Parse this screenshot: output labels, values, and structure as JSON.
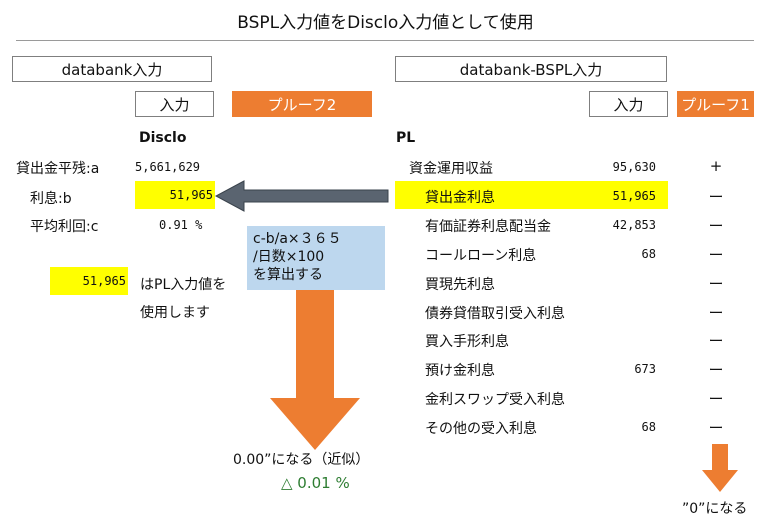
{
  "title": "BSPL入力値をDisclo入力値として使用",
  "left": {
    "header": "databank入力",
    "input_label": "入力",
    "proof_label": "プルーフ2",
    "section": "Disclo",
    "rows": [
      {
        "label": "貸出金平残:a",
        "value": "5,661,629"
      },
      {
        "label": "利息:b",
        "value": "51,965"
      },
      {
        "label": "平均利回:c",
        "value": "0.91 %"
      }
    ],
    "standalone_value": "51,965",
    "note_line1": "はPL入力値を",
    "note_line2": "使用します"
  },
  "right": {
    "header": "databank-BSPL入力",
    "input_label": "入力",
    "proof_label": "プルーフ1",
    "section": "PL",
    "rows": [
      {
        "label": "資金運用収益",
        "value": "95,630",
        "mark": "+"
      },
      {
        "label": "貸出金利息",
        "value": "51,965",
        "mark": "ー"
      },
      {
        "label": "有価証券利息配当金",
        "value": "42,853",
        "mark": "ー"
      },
      {
        "label": "コールローン利息",
        "value": "68",
        "mark": "ー"
      },
      {
        "label": "買現先利息",
        "value": "",
        "mark": "ー"
      },
      {
        "label": "債券貸借取引受入利息",
        "value": "",
        "mark": "ー"
      },
      {
        "label": "買入手形利息",
        "value": "",
        "mark": "ー"
      },
      {
        "label": "預け金利息",
        "value": "673",
        "mark": "ー"
      },
      {
        "label": "金利スワップ受入利息",
        "value": "",
        "mark": "ー"
      },
      {
        "label": "その他の受入利息",
        "value": "68",
        "mark": "ー"
      }
    ]
  },
  "calc_note": [
    "c-b/a×３６５",
    "/日数×100",
    "を算出する"
  ],
  "result_text": "0.00”になる（近似）",
  "delta_text": "△ 0.01 %",
  "zero_text": "”0”になる",
  "colors": {
    "orange": "#ed7d31",
    "highlight": "#ffff00",
    "note_bg": "#bdd7ee",
    "arrow_gray": "#5a6470",
    "delta_green": "#2e7d32"
  }
}
